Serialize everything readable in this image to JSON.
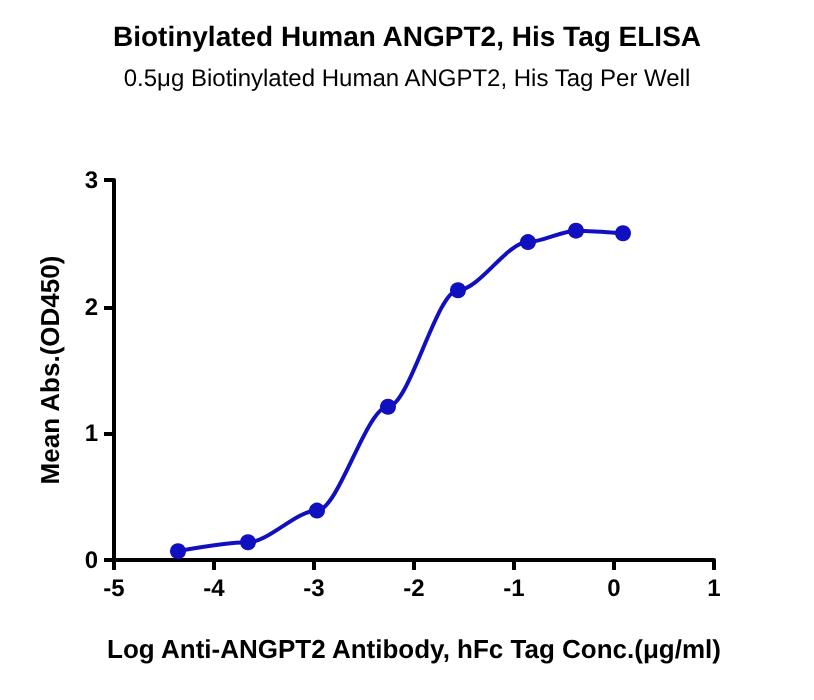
{
  "chart_data": {
    "type": "line",
    "title": "Biotinylated Human ANGPT2, His Tag ELISA",
    "subtitle": "0.5μg Biotinylated Human ANGPT2, His Tag Per Well",
    "xlabel": "Log Anti-ANGPT2 Antibody, hFc Tag Conc.(μg/ml)",
    "ylabel": "Mean Abs.(OD450)",
    "x": [
      -4.36,
      -3.66,
      -2.97,
      -2.26,
      -1.56,
      -0.86,
      -0.38,
      0.09
    ],
    "series": [
      {
        "color": "#1010c0",
        "values": [
          0.07,
          0.14,
          0.39,
          1.21,
          2.13,
          2.51,
          2.6,
          2.58
        ]
      }
    ],
    "xlim": [
      -5,
      1
    ],
    "xticks": [
      -5,
      -4,
      -3,
      -2,
      -1,
      0,
      1
    ],
    "ylim": [
      0,
      3
    ],
    "yticks": [
      0,
      1,
      2,
      3
    ],
    "marker": "circle",
    "line_style": "solid"
  }
}
